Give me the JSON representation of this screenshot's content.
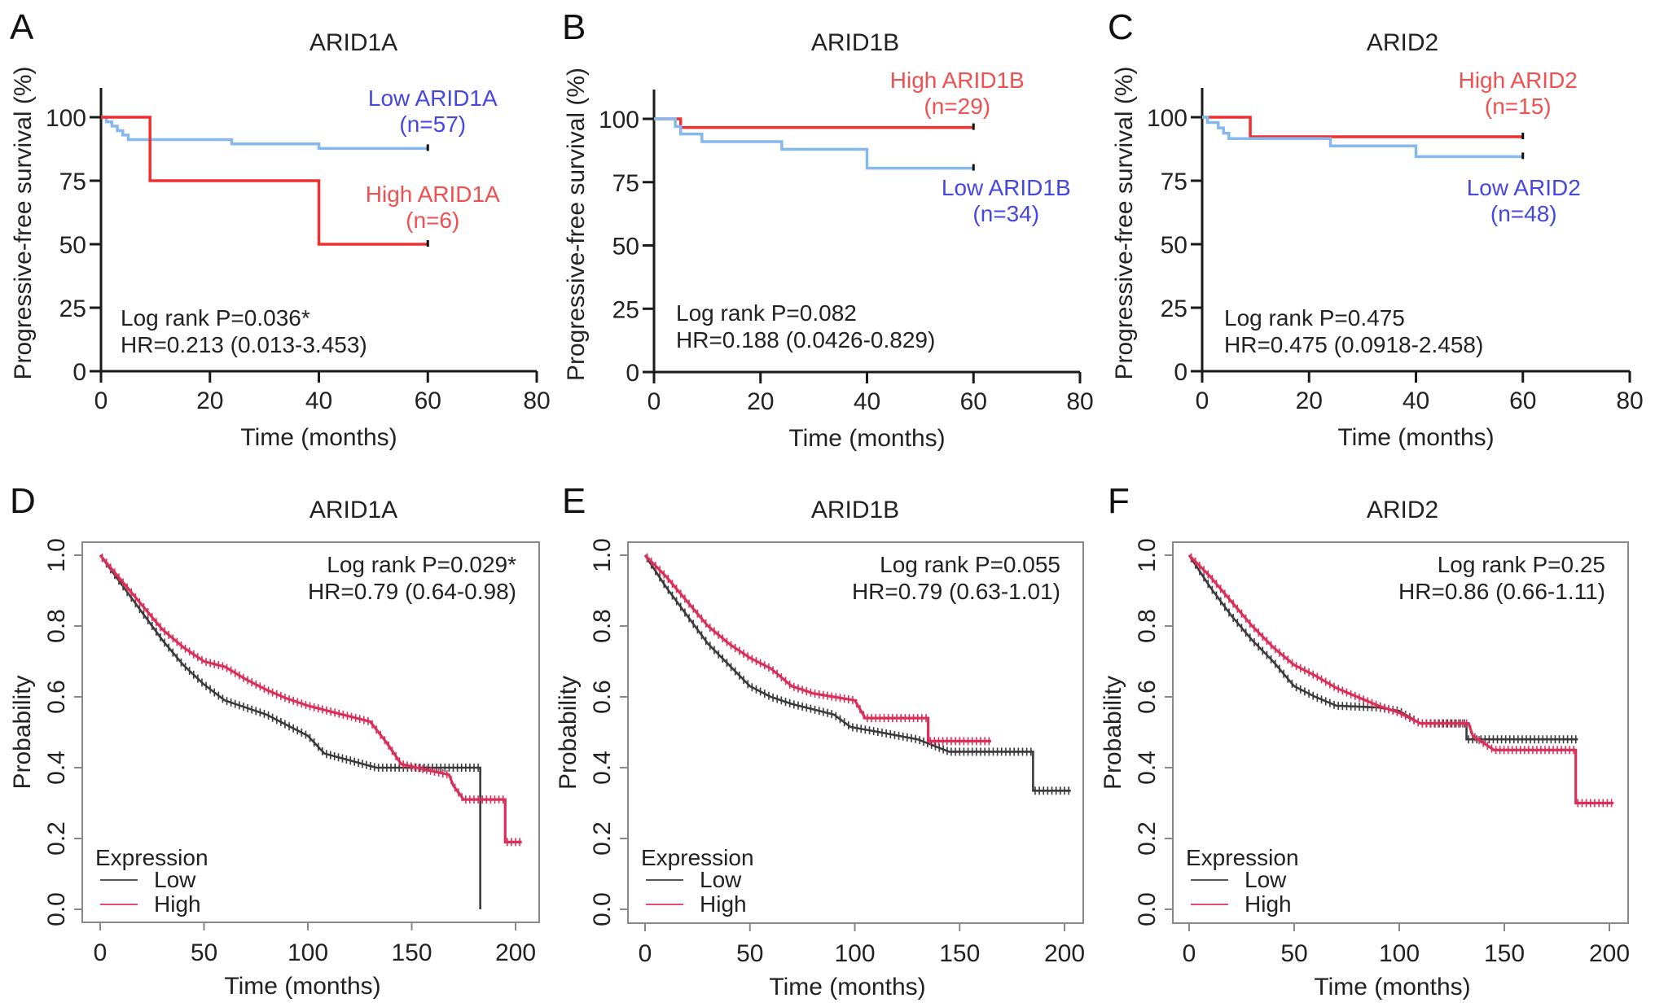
{
  "chart_data": [
    {
      "panel": "A",
      "type": "line",
      "style": "top",
      "title": "ARID1A",
      "xlabel": "Time (months)",
      "ylabel": "Progressive-free survival (%)",
      "xlim": [
        0,
        80
      ],
      "ylim": [
        0,
        100
      ],
      "xticks": [
        0,
        20,
        40,
        60,
        80
      ],
      "yticks": [
        0,
        25,
        50,
        75,
        100
      ],
      "annotation": [
        "Log rank P=0.036*",
        "HR=0.213 (0.013-3.453)"
      ],
      "series": [
        {
          "name": "Low ARID1A",
          "n_label": "(n=57)",
          "color": "#86b8f0",
          "label_color": "#4646e0",
          "steps": [
            [
              0,
              100
            ],
            [
              1,
              98.2
            ],
            [
              2,
              96.5
            ],
            [
              3,
              94.7
            ],
            [
              4,
              93
            ],
            [
              5,
              91.2
            ],
            [
              24,
              89.5
            ],
            [
              40,
              87.7
            ],
            [
              60,
              87.7
            ]
          ]
        },
        {
          "name": "High ARID1A",
          "n_label": "(n=6)",
          "color": "#ee3030",
          "label_color": "#f05050",
          "steps": [
            [
              0,
              100
            ],
            [
              9,
              75
            ],
            [
              40,
              50
            ],
            [
              60,
              50
            ]
          ]
        }
      ],
      "label_order": [
        "Low ARID1A",
        "High ARID1A"
      ]
    },
    {
      "panel": "B",
      "type": "line",
      "style": "top",
      "title": "ARID1B",
      "xlabel": "Time (months)",
      "ylabel": "Progressive-free survival (%)",
      "xlim": [
        0,
        80
      ],
      "ylim": [
        0,
        100
      ],
      "xticks": [
        0,
        20,
        40,
        60,
        80
      ],
      "yticks": [
        0,
        25,
        50,
        75,
        100
      ],
      "annotation": [
        "Log rank P=0.082",
        "HR=0.188 (0.0426-0.829)"
      ],
      "series": [
        {
          "name": "High ARID1B",
          "n_label": "(n=29)",
          "color": "#ee3030",
          "label_color": "#f05050",
          "steps": [
            [
              0,
              100
            ],
            [
              5,
              96.6
            ],
            [
              60,
              96.6
            ]
          ]
        },
        {
          "name": "Low ARID1B",
          "n_label": "(n=34)",
          "color": "#86b8f0",
          "label_color": "#4646e0",
          "steps": [
            [
              0,
              100
            ],
            [
              4,
              97
            ],
            [
              5,
              94
            ],
            [
              9,
              91
            ],
            [
              24,
              88
            ],
            [
              40,
              80.5
            ],
            [
              60,
              80.5
            ]
          ]
        }
      ],
      "label_order": [
        "High ARID1B",
        "Low ARID1B"
      ]
    },
    {
      "panel": "C",
      "type": "line",
      "style": "top",
      "title": "ARID2",
      "xlabel": "Time (months)",
      "ylabel": "Progressive-free survival (%)",
      "xlim": [
        0,
        80
      ],
      "ylim": [
        0,
        100
      ],
      "xticks": [
        0,
        20,
        40,
        60,
        80
      ],
      "yticks": [
        0,
        25,
        50,
        75,
        100
      ],
      "annotation": [
        "Log rank P=0.475",
        "HR=0.475 (0.0918-2.458)"
      ],
      "series": [
        {
          "name": "High ARID2",
          "n_label": "(n=15)",
          "color": "#ee3030",
          "label_color": "#f05050",
          "steps": [
            [
              0,
              100
            ],
            [
              9,
              92.3
            ],
            [
              60,
              92.3
            ]
          ]
        },
        {
          "name": "Low ARID2",
          "n_label": "(n=48)",
          "color": "#86b8f0",
          "label_color": "#4646e0",
          "steps": [
            [
              0,
              100
            ],
            [
              1,
              97.9
            ],
            [
              3,
              95.8
            ],
            [
              4,
              93.7
            ],
            [
              5,
              91.6
            ],
            [
              24,
              88.7
            ],
            [
              40,
              84.5
            ],
            [
              60,
              84.5
            ]
          ]
        }
      ],
      "label_order": [
        "High ARID2",
        "Low ARID2"
      ]
    },
    {
      "panel": "D",
      "type": "line",
      "style": "bottom",
      "title": "ARID1A",
      "xlabel": "Time (months)",
      "ylabel": "Probability",
      "xlim": [
        0,
        200
      ],
      "ylim": [
        0,
        1
      ],
      "xticks": [
        0,
        50,
        100,
        150,
        200
      ],
      "yticks": [
        "0.0",
        "0.2",
        "0.4",
        "0.6",
        "0.8",
        "1.0"
      ],
      "annotation": [
        "Log rank P=0.029*",
        "HR=0.79 (0.64-0.98)"
      ],
      "legend": {
        "title": "Expression",
        "entries": [
          "Low",
          "High"
        ]
      },
      "series": [
        {
          "name": "Low",
          "color": "#3a3a3a",
          "steps": [
            [
              0,
              1
            ],
            [
              10,
              0.92
            ],
            [
              20,
              0.84
            ],
            [
              30,
              0.76
            ],
            [
              40,
              0.69
            ],
            [
              50,
              0.635
            ],
            [
              60,
              0.59
            ],
            [
              70,
              0.57
            ],
            [
              80,
              0.55
            ],
            [
              90,
              0.52
            ],
            [
              100,
              0.49
            ],
            [
              108,
              0.44
            ],
            [
              133,
              0.4
            ],
            [
              183,
              0.4
            ],
            [
              183,
              0.0
            ]
          ]
        },
        {
          "name": "High",
          "color": "#d9305a",
          "steps": [
            [
              0,
              1
            ],
            [
              10,
              0.93
            ],
            [
              20,
              0.86
            ],
            [
              30,
              0.79
            ],
            [
              40,
              0.74
            ],
            [
              50,
              0.7
            ],
            [
              60,
              0.685
            ],
            [
              70,
              0.65
            ],
            [
              80,
              0.62
            ],
            [
              90,
              0.595
            ],
            [
              100,
              0.575
            ],
            [
              110,
              0.56
            ],
            [
              120,
              0.545
            ],
            [
              130,
              0.53
            ],
            [
              138,
              0.47
            ],
            [
              145,
              0.41
            ],
            [
              160,
              0.39
            ],
            [
              168,
              0.38
            ],
            [
              170,
              0.35
            ],
            [
              175,
              0.31
            ],
            [
              195,
              0.31
            ],
            [
              195,
              0.19
            ],
            [
              203,
              0.19
            ]
          ]
        }
      ]
    },
    {
      "panel": "E",
      "type": "line",
      "style": "bottom",
      "title": "ARID1B",
      "xlabel": "Time (months)",
      "ylabel": "Probability",
      "xlim": [
        0,
        200
      ],
      "ylim": [
        0,
        1
      ],
      "xticks": [
        0,
        50,
        100,
        150,
        200
      ],
      "yticks": [
        "0.0",
        "0.2",
        "0.4",
        "0.6",
        "0.8",
        "1.0"
      ],
      "annotation": [
        "Log rank P=0.055",
        "HR=0.79 (0.63-1.01)"
      ],
      "legend": {
        "title": "Expression",
        "entries": [
          "Low",
          "High"
        ]
      },
      "series": [
        {
          "name": "Low",
          "color": "#3a3a3a",
          "steps": [
            [
              0,
              1
            ],
            [
              10,
              0.91
            ],
            [
              20,
              0.83
            ],
            [
              30,
              0.75
            ],
            [
              40,
              0.69
            ],
            [
              50,
              0.63
            ],
            [
              60,
              0.6
            ],
            [
              70,
              0.58
            ],
            [
              80,
              0.565
            ],
            [
              90,
              0.55
            ],
            [
              98,
              0.515
            ],
            [
              112,
              0.5
            ],
            [
              130,
              0.48
            ],
            [
              145,
              0.445
            ],
            [
              185,
              0.445
            ],
            [
              185,
              0.335
            ],
            [
              203,
              0.335
            ]
          ]
        },
        {
          "name": "High",
          "color": "#d9305a",
          "steps": [
            [
              0,
              1
            ],
            [
              10,
              0.94
            ],
            [
              20,
              0.87
            ],
            [
              30,
              0.8
            ],
            [
              40,
              0.75
            ],
            [
              50,
              0.71
            ],
            [
              60,
              0.68
            ],
            [
              70,
              0.63
            ],
            [
              80,
              0.61
            ],
            [
              90,
              0.6
            ],
            [
              100,
              0.59
            ],
            [
              105,
              0.54
            ],
            [
              135,
              0.54
            ],
            [
              135,
              0.475
            ],
            [
              165,
              0.475
            ]
          ]
        }
      ]
    },
    {
      "panel": "F",
      "type": "line",
      "style": "bottom",
      "title": "ARID2",
      "xlabel": "Time (months)",
      "ylabel": "Probability",
      "xlim": [
        0,
        200
      ],
      "ylim": [
        0,
        1
      ],
      "xticks": [
        0,
        50,
        100,
        150,
        200
      ],
      "yticks": [
        "0.0",
        "0.2",
        "0.4",
        "0.6",
        "0.8",
        "1.0"
      ],
      "annotation": [
        "Log rank P=0.25",
        "HR=0.86 (0.66-1.11)"
      ],
      "legend": {
        "title": "Expression",
        "entries": [
          "Low",
          "High"
        ]
      },
      "series": [
        {
          "name": "Low",
          "color": "#3a3a3a",
          "steps": [
            [
              0,
              1
            ],
            [
              10,
              0.91
            ],
            [
              20,
              0.83
            ],
            [
              30,
              0.76
            ],
            [
              40,
              0.7
            ],
            [
              50,
              0.63
            ],
            [
              60,
              0.6
            ],
            [
              70,
              0.575
            ],
            [
              90,
              0.57
            ],
            [
              100,
              0.56
            ],
            [
              110,
              0.525
            ],
            [
              132,
              0.525
            ],
            [
              132,
              0.48
            ],
            [
              185,
              0.48
            ]
          ]
        },
        {
          "name": "High",
          "color": "#d9305a",
          "steps": [
            [
              0,
              1
            ],
            [
              10,
              0.94
            ],
            [
              20,
              0.87
            ],
            [
              30,
              0.8
            ],
            [
              40,
              0.74
            ],
            [
              50,
              0.69
            ],
            [
              60,
              0.66
            ],
            [
              70,
              0.625
            ],
            [
              80,
              0.6
            ],
            [
              90,
              0.575
            ],
            [
              100,
              0.555
            ],
            [
              110,
              0.525
            ],
            [
              133,
              0.525
            ],
            [
              135,
              0.49
            ],
            [
              145,
              0.45
            ],
            [
              184,
              0.45
            ],
            [
              184,
              0.3
            ],
            [
              202,
              0.3
            ]
          ]
        }
      ]
    }
  ]
}
